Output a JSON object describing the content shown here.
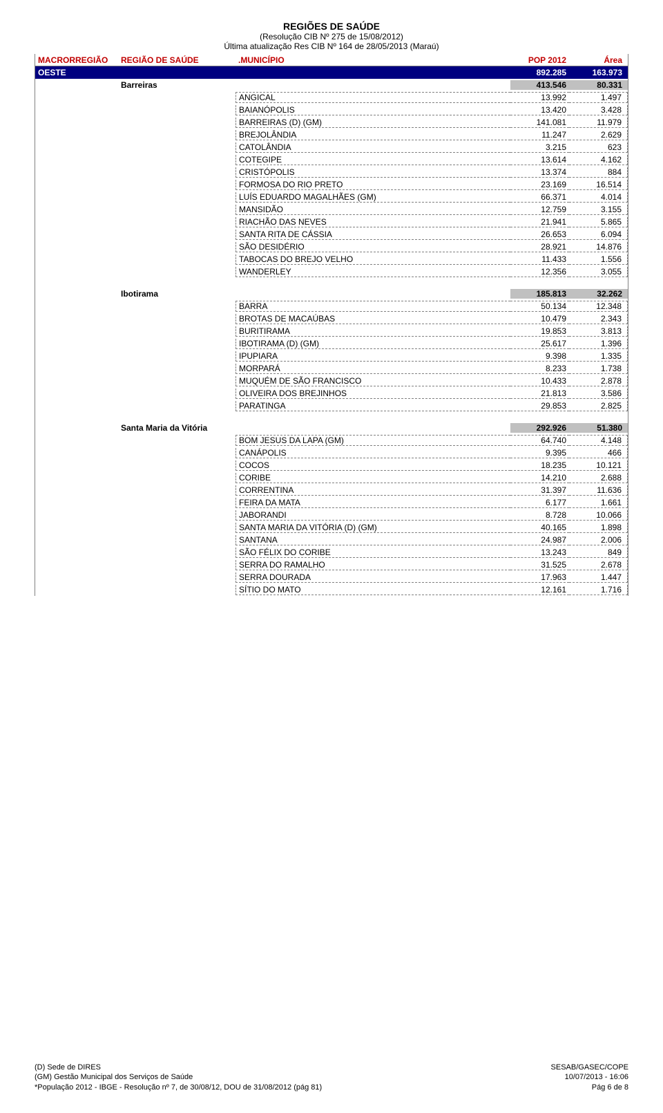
{
  "header": {
    "title": "REGIÕES DE SAÚDE",
    "subtitle1": "(Resolução CIB Nº 275 de 15/08/2012)",
    "subtitle2": "Última atualização Res CIB Nº 164 de 28/05/2013 (Maraú)"
  },
  "columns": {
    "macro": "MACRORREGIÃO",
    "regiao": "REGIÃO DE SAÚDE",
    "muni": ".MUNICÍPIO",
    "pop": "POP 2012",
    "area": "Área"
  },
  "macro": {
    "name": "OESTE",
    "pop": "892.285",
    "area": "163.973"
  },
  "regioes": [
    {
      "name": "Barreiras",
      "pop": "413.546",
      "area": "80.331",
      "municipios": [
        {
          "n": "ANGICAL",
          "p": "13.992",
          "a": "1.497"
        },
        {
          "n": "BAIANÓPOLIS",
          "p": "13.420",
          "a": "3.428"
        },
        {
          "n": "BARREIRAS (D) (GM)",
          "p": "141.081",
          "a": "11.979"
        },
        {
          "n": "BREJOLÂNDIA",
          "p": "11.247",
          "a": "2.629"
        },
        {
          "n": "CATOLÂNDIA",
          "p": "3.215",
          "a": "623"
        },
        {
          "n": "COTEGIPE",
          "p": "13.614",
          "a": "4.162"
        },
        {
          "n": "CRISTÓPOLIS",
          "p": "13.374",
          "a": "884"
        },
        {
          "n": "FORMOSA DO RIO PRETO",
          "p": "23.169",
          "a": "16.514"
        },
        {
          "n": "LUÍS EDUARDO MAGALHÃES (GM)",
          "p": "66.371",
          "a": "4.014"
        },
        {
          "n": "MANSIDÃO",
          "p": "12.759",
          "a": "3.155"
        },
        {
          "n": "RIACHÃO DAS NEVES",
          "p": "21.941",
          "a": "5.865"
        },
        {
          "n": "SANTA RITA DE CÁSSIA",
          "p": "26.653",
          "a": "6.094"
        },
        {
          "n": "SÃO DESIDÉRIO",
          "p": "28.921",
          "a": "14.876"
        },
        {
          "n": "TABOCAS DO BREJO VELHO",
          "p": "11.433",
          "a": "1.556"
        },
        {
          "n": "WANDERLEY",
          "p": "12.356",
          "a": "3.055"
        }
      ]
    },
    {
      "name": "Ibotirama",
      "pop": "185.813",
      "area": "32.262",
      "municipios": [
        {
          "n": "BARRA",
          "p": "50.134",
          "a": "12.348"
        },
        {
          "n": "BROTAS DE MACAÚBAS",
          "p": "10.479",
          "a": "2.343"
        },
        {
          "n": "BURITIRAMA",
          "p": "19.853",
          "a": "3.813"
        },
        {
          "n": "IBOTIRAMA (D) (GM)",
          "p": "25.617",
          "a": "1.396"
        },
        {
          "n": "IPUPIARA",
          "p": "9.398",
          "a": "1.335"
        },
        {
          "n": "MORPARÁ",
          "p": "8.233",
          "a": "1.738"
        },
        {
          "n": "MUQUÉM DE SÃO FRANCISCO",
          "p": "10.433",
          "a": "2.878"
        },
        {
          "n": "OLIVEIRA DOS BREJINHOS",
          "p": "21.813",
          "a": "3.586"
        },
        {
          "n": "PARATINGA",
          "p": "29.853",
          "a": "2.825"
        }
      ]
    },
    {
      "name": "Santa Maria da Vitória",
      "pop": "292.926",
      "area": "51.380",
      "municipios": [
        {
          "n": "BOM JESUS DA LAPA (GM)",
          "p": "64.740",
          "a": "4.148"
        },
        {
          "n": "CANÁPOLIS",
          "p": "9.395",
          "a": "466"
        },
        {
          "n": "COCOS",
          "p": "18.235",
          "a": "10.121"
        },
        {
          "n": "CORIBE",
          "p": "14.210",
          "a": "2.688"
        },
        {
          "n": "CORRENTINA",
          "p": "31.397",
          "a": "11.636"
        },
        {
          "n": "FEIRA DA MATA",
          "p": "6.177",
          "a": "1.661"
        },
        {
          "n": "JABORANDI",
          "p": "8.728",
          "a": "10.066"
        },
        {
          "n": "SANTA MARIA DA VITÓRIA (D) (GM)",
          "p": "40.165",
          "a": "1.898"
        },
        {
          "n": "SANTANA",
          "p": "24.987",
          "a": "2.006"
        },
        {
          "n": "SÃO FÉLIX DO CORIBE",
          "p": "13.243",
          "a": "849"
        },
        {
          "n": "SERRA DO RAMALHO",
          "p": "31.525",
          "a": "2.678"
        },
        {
          "n": "SERRA DOURADA",
          "p": "17.963",
          "a": "1.447"
        },
        {
          "n": "SÍTIO DO MATO",
          "p": "12.161",
          "a": "1.716"
        }
      ]
    }
  ],
  "footer": {
    "left1": "(D) Sede de DIRES",
    "left2": "(GM) Gestão Municipal dos Serviços de Saúde",
    "left3": "*População 2012 - IBGE - Resolução nº 7, de 30/08/12, DOU de 31/08/2012 (pág 81)",
    "right1": "SESAB/GASEC/COPE",
    "right2": "10/07/2013 - 16:06",
    "right3": "Pág 6 de 8"
  }
}
